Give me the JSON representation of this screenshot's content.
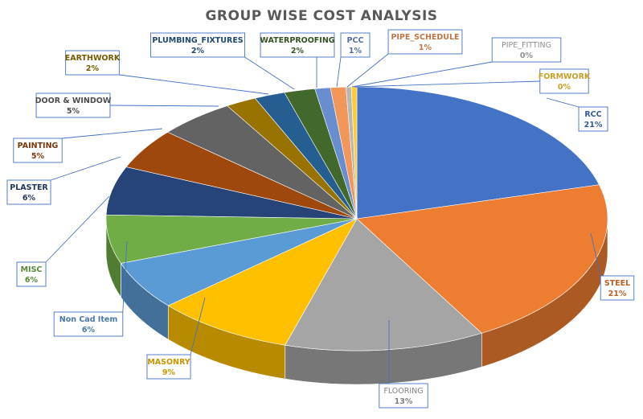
{
  "chart_data": {
    "type": "pie",
    "title": "GROUP WISE COST ANALYSIS",
    "slices": [
      {
        "name": "RCC",
        "value": 21,
        "label": "21%",
        "color": "#4472c4"
      },
      {
        "name": "STEEL",
        "value": 21,
        "label": "21%",
        "color": "#ed7d31"
      },
      {
        "name": "FLOORING",
        "value": 13,
        "label": "13%",
        "color": "#a5a5a5"
      },
      {
        "name": "MASONRY",
        "value": 9,
        "label": "9%",
        "color": "#ffc000"
      },
      {
        "name": "Non Cad Item",
        "value": 6,
        "label": "6%",
        "color": "#5b9bd5"
      },
      {
        "name": "MISC",
        "value": 6,
        "label": "6%",
        "color": "#70ad47"
      },
      {
        "name": "PLASTER",
        "value": 6,
        "label": "6%",
        "color": "#264478"
      },
      {
        "name": "PAINTING",
        "value": 5,
        "label": "5%",
        "color": "#9e480e"
      },
      {
        "name": "DOOR & WINDOW",
        "value": 5,
        "label": "5%",
        "color": "#636363"
      },
      {
        "name": "EARTHWORK",
        "value": 2,
        "label": "2%",
        "color": "#997300"
      },
      {
        "name": "PLUMBING_FIXTURES",
        "value": 2,
        "label": "2%",
        "color": "#255e91"
      },
      {
        "name": "WATERPROOFING",
        "value": 2,
        "label": "2%",
        "color": "#43682b"
      },
      {
        "name": "PCC",
        "value": 1,
        "label": "1%",
        "color": "#698ed0"
      },
      {
        "name": "PIPE_SCHEDULE",
        "value": 1,
        "label": "1%",
        "color": "#f1975a"
      },
      {
        "name": "PIPE_FITTING",
        "value": 0,
        "label": "0%",
        "color": "#b7b7b7"
      },
      {
        "name": "FORMWORK",
        "value": 0,
        "label": "0%",
        "color": "#ffcd33"
      }
    ]
  }
}
